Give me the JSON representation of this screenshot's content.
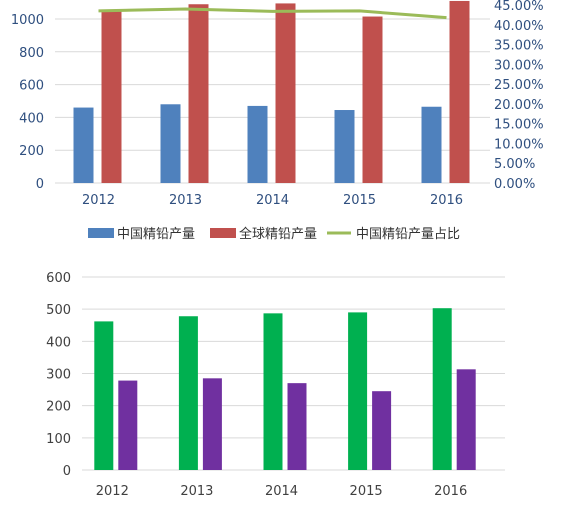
{
  "chart_data": [
    {
      "type": "bar",
      "categories": [
        "2012",
        "2013",
        "2014",
        "2015",
        "2016"
      ],
      "series": [
        {
          "name": "中国精铅产量",
          "kind": "bar",
          "axis": "left",
          "color": "#4f81bd",
          "values": [
            460,
            480,
            470,
            445,
            465
          ]
        },
        {
          "name": "全球精铅产量",
          "kind": "bar",
          "axis": "left",
          "color": "#c0504d",
          "values": [
            1050,
            1090,
            1095,
            1015,
            1110
          ]
        },
        {
          "name": "中国精铅产量占比",
          "kind": "line",
          "axis": "right",
          "color": "#9bbb59",
          "values": [
            43.5,
            44.0,
            43.4,
            43.5,
            41.8
          ]
        }
      ],
      "y_ticks": [
        "0",
        "200",
        "400",
        "600",
        "800",
        "1000"
      ],
      "y2_ticks": [
        "0.00%",
        "5.00%",
        "10.00%",
        "15.00%",
        "20.00%",
        "25.00%",
        "30.00%",
        "35.00%",
        "40.00%",
        "45.00%"
      ],
      "ylim": [
        0,
        1100
      ],
      "y2lim": [
        0,
        45
      ],
      "grid": true,
      "legend": "bottom"
    },
    {
      "type": "bar",
      "categories": [
        "2012",
        "2013",
        "2014",
        "2015",
        "2016"
      ],
      "series": [
        {
          "color": "#00b050",
          "values": [
            462,
            478,
            487,
            490,
            503
          ]
        },
        {
          "color": "#7030a0",
          "values": [
            278,
            285,
            270,
            245,
            313
          ]
        }
      ],
      "y_ticks": [
        "0",
        "100",
        "200",
        "300",
        "400",
        "500",
        "600"
      ],
      "ylim": [
        0,
        600
      ],
      "grid": true
    }
  ]
}
